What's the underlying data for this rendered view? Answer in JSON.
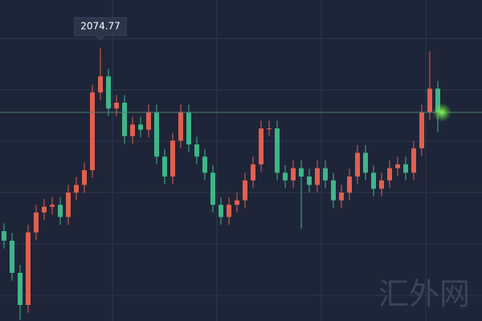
{
  "chart_data": {
    "type": "candlestick",
    "open": [
      1790,
      1775,
      1725,
      1675,
      1788,
      1819,
      1828,
      1831,
      1812,
      1850,
      1862,
      1885,
      2006,
      2031,
      1981,
      1990,
      1938,
      1956,
      1948,
      1975,
      1906,
      1875,
      1931,
      1975,
      1925,
      1906,
      1881,
      1831,
      1812,
      1831,
      1838,
      1869,
      1894,
      1950,
      1950,
      1881,
      1869,
      1888,
      1875,
      1862,
      1888,
      1869,
      1838,
      1850,
      1875,
      1912,
      1881,
      1856,
      1869,
      1888,
      1894,
      1881,
      1919,
      1975,
      2012
    ],
    "high": [
      1802,
      1787,
      1737,
      1800,
      1831,
      1840,
      1843,
      1843,
      1862,
      1874,
      1897,
      2018,
      2074.77,
      2043,
      2002,
      2002,
      1968,
      1968,
      1987,
      1987,
      1918,
      1943,
      1987,
      1987,
      1937,
      1918,
      1893,
      1843,
      1843,
      1850,
      1881,
      1906,
      1962,
      1962,
      1962,
      1893,
      1900,
      1900,
      1887,
      1900,
      1900,
      1881,
      1862,
      1887,
      1924,
      1924,
      1893,
      1881,
      1900,
      1906,
      1906,
      1931,
      1987,
      2070,
      2024
    ],
    "low": [
      1763,
      1713,
      1652,
      1663,
      1776,
      1807,
      1816,
      1800,
      1800,
      1838,
      1850,
      1873,
      1994,
      1969,
      1969,
      1926,
      1926,
      1936,
      1936,
      1894,
      1863,
      1863,
      1919,
      1913,
      1894,
      1869,
      1819,
      1800,
      1800,
      1819,
      1826,
      1857,
      1882,
      1938,
      1869,
      1857,
      1857,
      1794,
      1850,
      1850,
      1857,
      1826,
      1826,
      1838,
      1863,
      1869,
      1844,
      1844,
      1857,
      1876,
      1869,
      1869,
      1907,
      1963,
      1944
    ],
    "close": [
      1775,
      1725,
      1675,
      1788,
      1819,
      1828,
      1831,
      1812,
      1850,
      1862,
      1885,
      2006,
      2031,
      1981,
      1990,
      1938,
      1956,
      1948,
      1975,
      1906,
      1875,
      1931,
      1975,
      1925,
      1906,
      1881,
      1831,
      1812,
      1831,
      1838,
      1869,
      1894,
      1950,
      1950,
      1881,
      1869,
      1888,
      1875,
      1862,
      1888,
      1869,
      1838,
      1850,
      1875,
      1912,
      1881,
      1856,
      1869,
      1888,
      1894,
      1881,
      1919,
      1975,
      2012,
      1975
    ],
    "up_color": "#e0604f",
    "down_color": "#3fb58a",
    "ylim": [
      1650,
      2150
    ],
    "watermark": "汇外网"
  }
}
